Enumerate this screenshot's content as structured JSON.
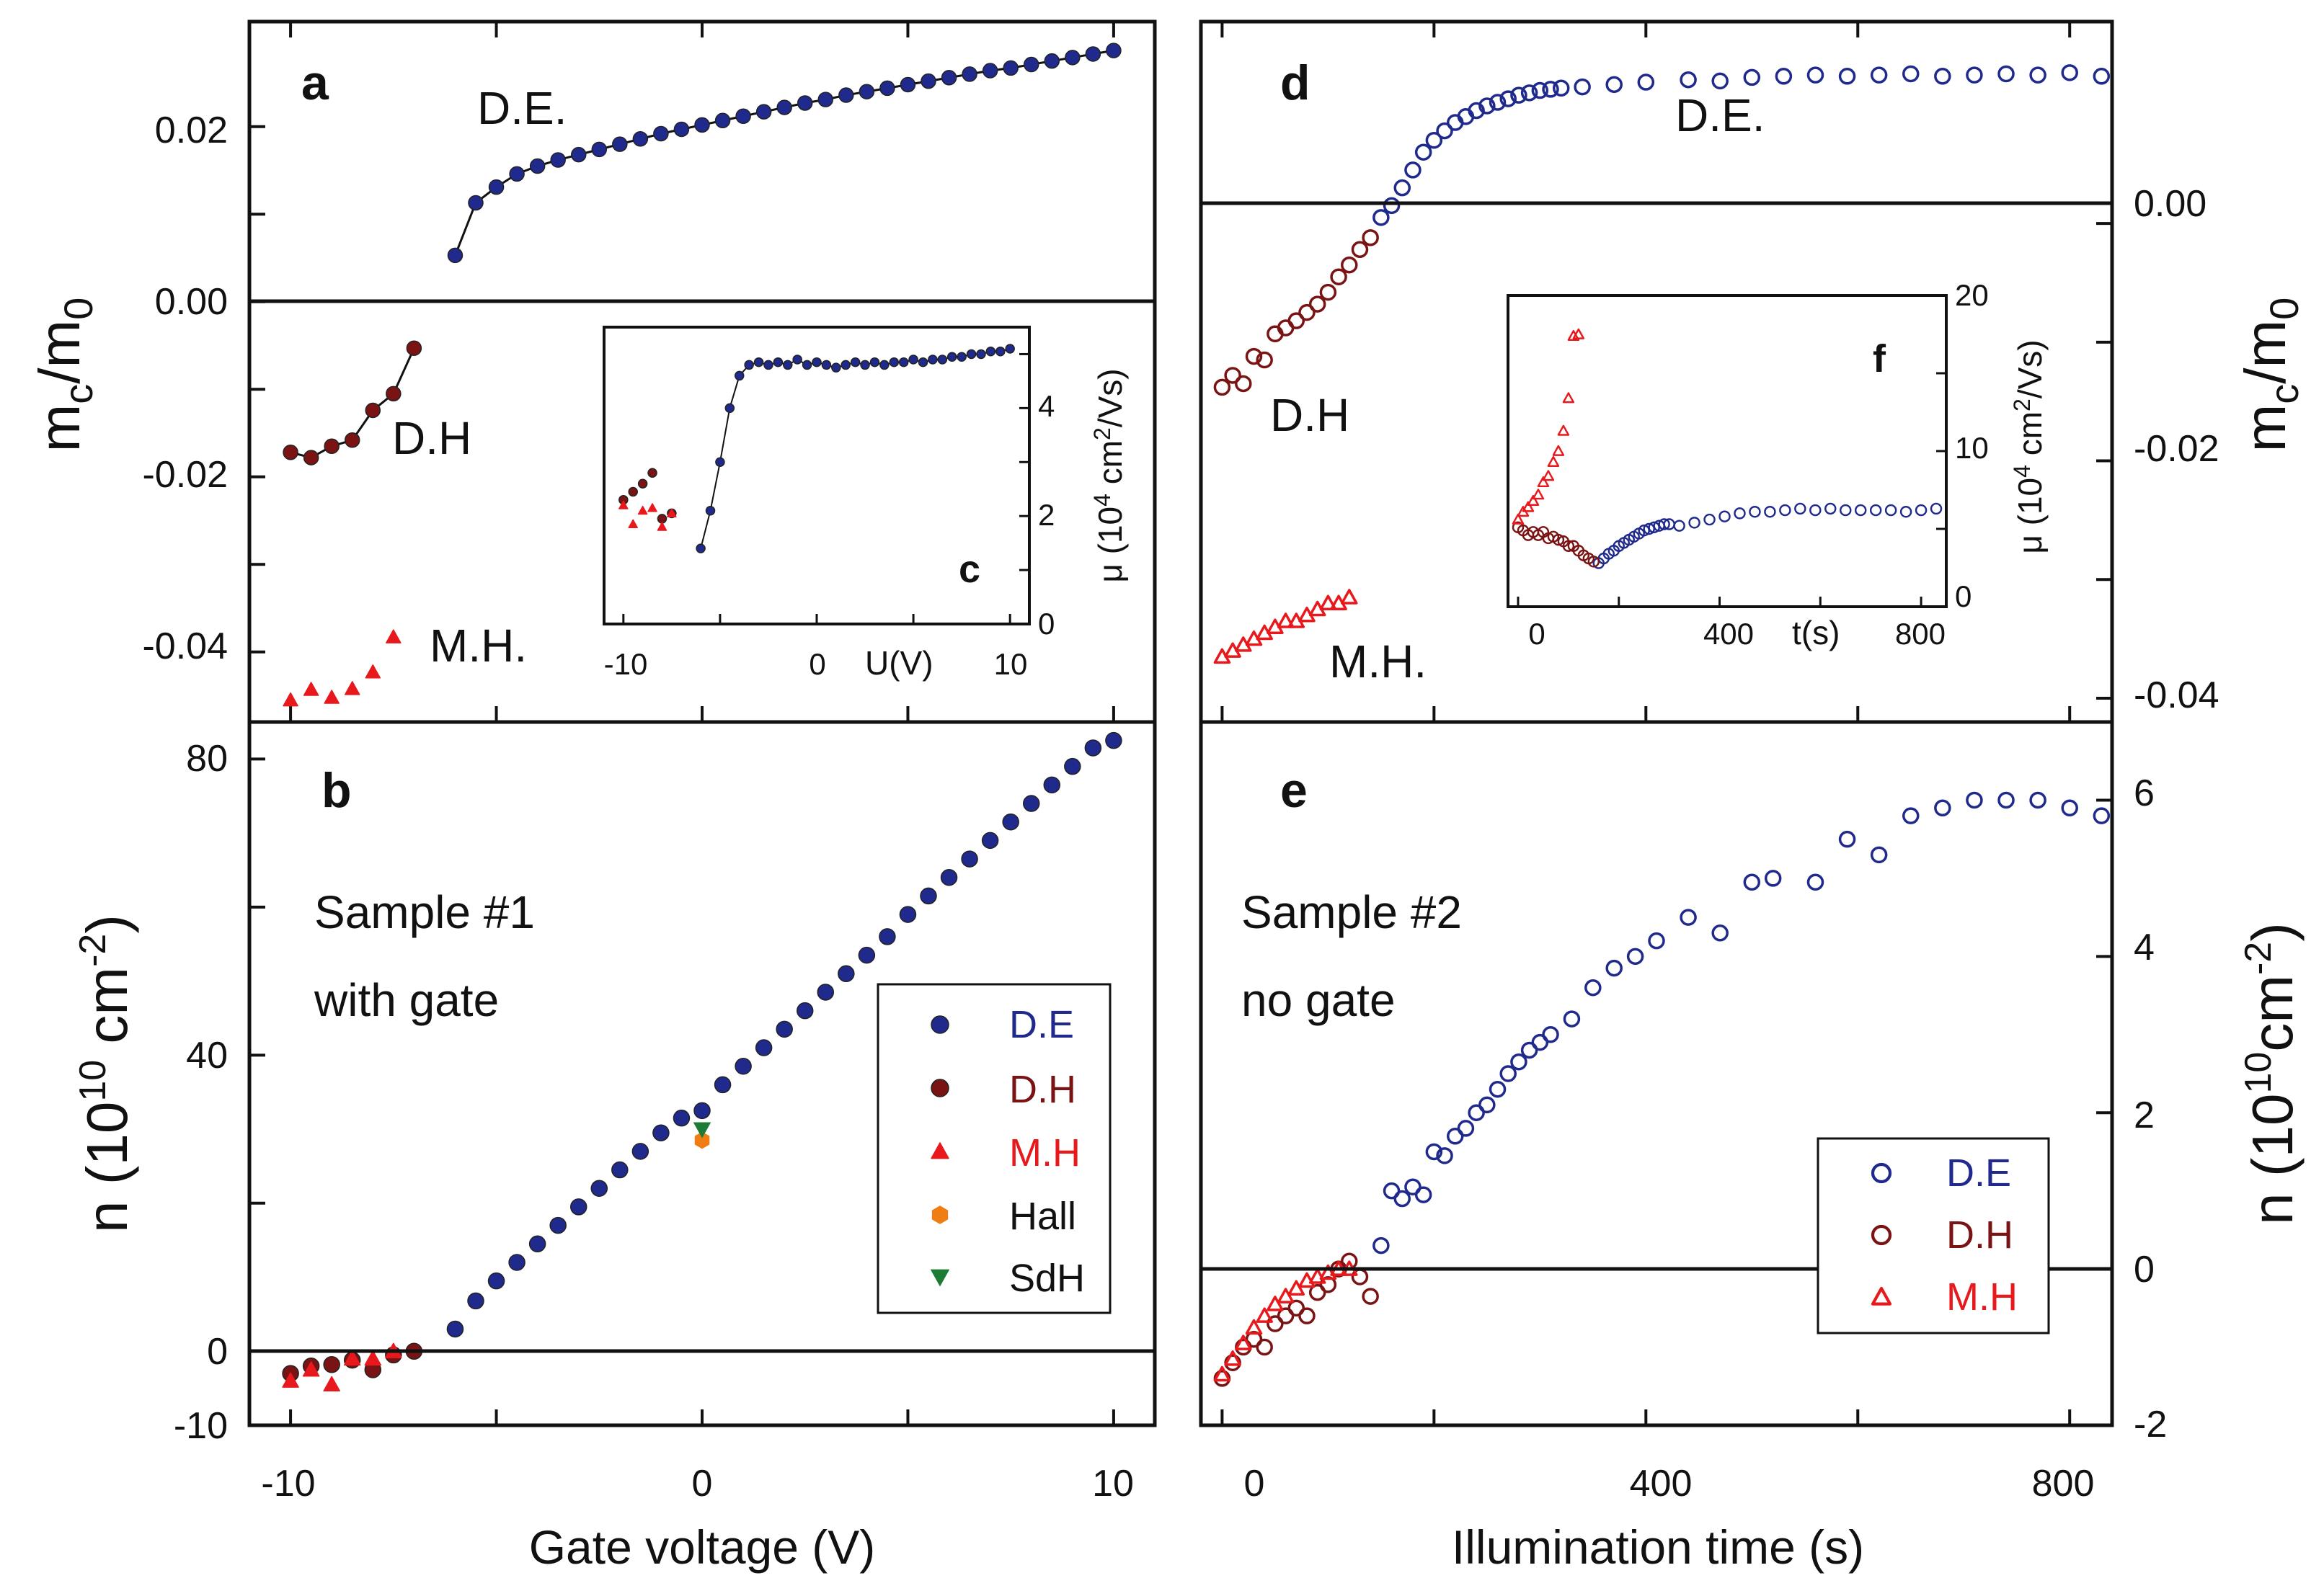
{
  "colors": {
    "de": "#1f2a8c",
    "dh": "#7a1414",
    "mh": "#e8191c",
    "hall": "#f07d14",
    "sdh": "#1e7b34",
    "axis": "#111111"
  },
  "chart_data": [
    {
      "id": "a",
      "type": "line",
      "panel_label": "a",
      "ylabel": "m_c/m_0",
      "xlim": [
        -11,
        11
      ],
      "ylim": [
        -0.048,
        0.032
      ],
      "y_ticks": [
        "0.02",
        "0.00",
        "-0.02",
        "-0.04"
      ],
      "annotations": {
        "de": "D.E.",
        "dh": "D.H",
        "mh": "M.H."
      },
      "series": [
        {
          "name": "D.E.",
          "marker": "filled-circle",
          "x": [
            -6,
            -5.5,
            -5,
            -4.5,
            -4,
            -3.5,
            -3,
            -2.5,
            -2,
            -1.5,
            -1,
            -0.5,
            0,
            0.5,
            1,
            1.5,
            2,
            2.5,
            3,
            3.5,
            4,
            4.5,
            5,
            5.5,
            6,
            6.5,
            7,
            7.5,
            8,
            8.5,
            9,
            9.5,
            10
          ],
          "y": [
            0.0053,
            0.0113,
            0.0131,
            0.0146,
            0.0155,
            0.0162,
            0.0168,
            0.0174,
            0.018,
            0.0186,
            0.0192,
            0.0197,
            0.0202,
            0.0207,
            0.0212,
            0.0217,
            0.0222,
            0.0227,
            0.0231,
            0.0236,
            0.024,
            0.0244,
            0.0248,
            0.0252,
            0.0256,
            0.026,
            0.0264,
            0.0267,
            0.0271,
            0.0275,
            0.0279,
            0.0283,
            0.0287
          ]
        },
        {
          "name": "D.H",
          "marker": "filled-circle",
          "x": [
            -10,
            -9.5,
            -9,
            -8.5,
            -8,
            -7.5,
            -7
          ],
          "y": [
            -0.0172,
            -0.0178,
            -0.0165,
            -0.0158,
            -0.0124,
            -0.0105,
            -0.0053
          ]
        },
        {
          "name": "M.H.",
          "marker": "filled-triangle",
          "x": [
            -10,
            -9.5,
            -9,
            -8.5,
            -8,
            -7.5
          ],
          "y": [
            -0.0455,
            -0.0443,
            -0.0452,
            -0.0442,
            -0.0423,
            -0.0383
          ]
        }
      ]
    },
    {
      "id": "b",
      "type": "scatter",
      "panel_label": "b",
      "xlabel": "Gate voltage (V)",
      "ylabel": "n (10^10 cm^-2)",
      "ylabel_parts": {
        "a": "n (10",
        "b": "10",
        "c": " cm",
        "d": "-2",
        "e": ")"
      },
      "xlim": [
        -11,
        11
      ],
      "ylim": [
        -10,
        85
      ],
      "x_ticks": [
        "-10",
        "0",
        "10"
      ],
      "y_ticks": [
        "80",
        "40",
        "0",
        "-10"
      ],
      "notes": [
        "Sample #1",
        "with gate"
      ],
      "legend": [
        "D.E",
        "D.H",
        "M.H",
        "Hall",
        "SdH"
      ],
      "series": [
        {
          "name": "D.E",
          "marker": "filled-circle",
          "x": [
            -6,
            -5.5,
            -5,
            -4.5,
            -4,
            -3.5,
            -3,
            -2.5,
            -2,
            -1.5,
            -1,
            -0.5,
            0,
            0.5,
            1,
            1.5,
            2,
            2.5,
            3,
            3.5,
            4,
            4.5,
            5,
            5.5,
            6,
            6.5,
            7,
            7.5,
            8,
            8.5,
            9,
            9.5,
            10
          ],
          "y": [
            3,
            6.8,
            9.5,
            12,
            14.5,
            17,
            19.5,
            22,
            24.5,
            27,
            29.5,
            31.5,
            32.5,
            36,
            38.5,
            41,
            43.5,
            46,
            48.5,
            51,
            53.5,
            56,
            59,
            61.5,
            64,
            66.5,
            69,
            71.5,
            74,
            76.5,
            79,
            81.5,
            82.5
          ]
        },
        {
          "name": "D.H",
          "marker": "filled-circle",
          "x": [
            -10,
            -9.5,
            -9,
            -8.5,
            -8,
            -7.5,
            -7
          ],
          "y": [
            -3,
            -2,
            -1.8,
            -1.2,
            -2.5,
            -0.5,
            0
          ]
        },
        {
          "name": "M.H",
          "marker": "filled-triangle",
          "x": [
            -10,
            -9.5,
            -9,
            -8.5,
            -8,
            -7.5
          ],
          "y": [
            -4,
            -2.5,
            -4.5,
            -1,
            -1,
            0
          ]
        },
        {
          "name": "Hall",
          "marker": "filled-hexagon",
          "x": [
            0
          ],
          "y": [
            28.5
          ]
        },
        {
          "name": "SdH",
          "marker": "filled-down-triangle",
          "x": [
            0
          ],
          "y": [
            30
          ]
        }
      ]
    },
    {
      "id": "c",
      "type": "line",
      "panel_label": "c",
      "inset": true,
      "xlabel": "U(V)",
      "ylabel": "μ (10^4 cm^2/Vs)",
      "ylabel_parts": {
        "a": "μ (10",
        "b": "4",
        "c": " cm",
        "d": "2",
        "e": "/Vs)"
      },
      "xlim": [
        -11,
        11
      ],
      "ylim": [
        0,
        5.5
      ],
      "x_ticks": [
        "-10",
        "0",
        "10"
      ],
      "y_ticks": [
        "0",
        "2",
        "4"
      ],
      "series": [
        {
          "name": "D.E",
          "x": [
            -6,
            -5.5,
            -5,
            -4.5,
            -4,
            -3.5,
            -3,
            -2.5,
            -2,
            -1.5,
            -1,
            -0.5,
            0,
            0.5,
            1,
            1.5,
            2,
            2.5,
            3,
            3.5,
            4,
            4.5,
            5,
            5.5,
            6,
            6.5,
            7,
            7.5,
            8,
            8.5,
            9,
            9.5,
            10
          ],
          "y": [
            1.4,
            2.1,
            3,
            4,
            4.6,
            4.8,
            4.85,
            4.8,
            4.85,
            4.8,
            4.9,
            4.8,
            4.85,
            4.8,
            4.75,
            4.8,
            4.85,
            4.8,
            4.85,
            4.8,
            4.85,
            4.85,
            4.9,
            4.85,
            4.9,
            4.9,
            4.95,
            4.95,
            5,
            5,
            5.05,
            5.05,
            5.1
          ]
        },
        {
          "name": "D.H",
          "x": [
            -10,
            -9.5,
            -9,
            -8.5,
            -8,
            -7.5
          ],
          "y": [
            2.3,
            2.45,
            2.6,
            2.8,
            1.95,
            2.05
          ]
        },
        {
          "name": "M.H",
          "x": [
            -10,
            -9.5,
            -9,
            -8.5,
            -8,
            -7.5
          ],
          "y": [
            2.2,
            1.85,
            2.1,
            2.15,
            1.8,
            2.05
          ]
        }
      ]
    },
    {
      "id": "d",
      "type": "scatter",
      "panel_label": "d",
      "ylabel": "m_c/m_0",
      "xlim": [
        -20,
        840
      ],
      "ylim": [
        -0.042,
        0.017
      ],
      "y_ticks": [
        "0.00",
        "-0.02",
        "-0.04"
      ],
      "annotations": {
        "de": "D.E.",
        "dh": "D.H",
        "mh": "M.H."
      },
      "series": [
        {
          "name": "D.E.",
          "marker": "open-circle",
          "x": [
            150,
            160,
            170,
            180,
            190,
            200,
            210,
            220,
            230,
            240,
            250,
            260,
            270,
            280,
            290,
            300,
            310,
            320,
            340,
            370,
            400,
            440,
            470,
            500,
            530,
            560,
            590,
            620,
            650,
            680,
            710,
            740,
            770,
            800,
            830
          ],
          "y": [
            0.0005,
            0.0015,
            0.003,
            0.0045,
            0.006,
            0.007,
            0.0078,
            0.0085,
            0.009,
            0.0095,
            0.0099,
            0.0102,
            0.0105,
            0.0108,
            0.011,
            0.0112,
            0.0113,
            0.0114,
            0.0115,
            0.0117,
            0.0119,
            0.0121,
            0.012,
            0.0123,
            0.0124,
            0.0125,
            0.0124,
            0.0125,
            0.0126,
            0.0124,
            0.0125,
            0.0126,
            0.0125,
            0.0127,
            0.0124
          ]
        },
        {
          "name": "D.H",
          "marker": "open-circle",
          "x": [
            0,
            10,
            20,
            30,
            40,
            50,
            60,
            70,
            80,
            90,
            100,
            110,
            120,
            130,
            140
          ],
          "y": [
            -0.0138,
            -0.0128,
            -0.0135,
            -0.0112,
            -0.0115,
            -0.0093,
            -0.0088,
            -0.0082,
            -0.0075,
            -0.0068,
            -0.0058,
            -0.0045,
            -0.0035,
            -0.0022,
            -0.0012
          ]
        },
        {
          "name": "M.H.",
          "marker": "open-triangle",
          "x": [
            0,
            10,
            20,
            30,
            40,
            50,
            60,
            70,
            80,
            90,
            100,
            110,
            120
          ],
          "y": [
            -0.0365,
            -0.036,
            -0.0355,
            -0.035,
            -0.0345,
            -0.034,
            -0.0335,
            -0.0335,
            -0.033,
            -0.0325,
            -0.032,
            -0.032,
            -0.0315
          ]
        }
      ]
    },
    {
      "id": "e",
      "type": "scatter",
      "panel_label": "e",
      "xlabel": "Illumination time (s)",
      "ylabel": "n (10^10 cm^-2)",
      "ylabel_parts": {
        "a": "n (10",
        "b": "10",
        "c": "cm",
        "d": "-2",
        "e": ")"
      },
      "xlim": [
        -20,
        840
      ],
      "ylim": [
        -2,
        7
      ],
      "x_ticks": [
        "0",
        "400",
        "800"
      ],
      "y_ticks": [
        "6",
        "4",
        "2",
        "0",
        "-2"
      ],
      "notes": [
        "Sample #2",
        "no gate"
      ],
      "legend": [
        "D.E",
        "D.H",
        "M.H"
      ],
      "series": [
        {
          "name": "D.E",
          "marker": "open-circle",
          "x": [
            150,
            160,
            170,
            180,
            190,
            200,
            210,
            220,
            230,
            240,
            250,
            260,
            270,
            280,
            290,
            300,
            310,
            330,
            350,
            370,
            390,
            410,
            440,
            470,
            500,
            520,
            560,
            590,
            620,
            650,
            680,
            710,
            740,
            770,
            800,
            830
          ],
          "y": [
            0.3,
            1,
            0.9,
            1.05,
            0.95,
            1.5,
            1.45,
            1.7,
            1.8,
            2,
            2.1,
            2.3,
            2.5,
            2.65,
            2.8,
            2.9,
            3,
            3.2,
            3.6,
            3.85,
            4,
            4.2,
            4.5,
            4.3,
            4.95,
            5,
            4.95,
            5.5,
            5.3,
            5.8,
            5.9,
            6,
            6,
            6,
            5.9,
            5.8
          ]
        },
        {
          "name": "D.H",
          "marker": "open-circle",
          "x": [
            0,
            10,
            20,
            30,
            40,
            50,
            60,
            70,
            80,
            90,
            100,
            110,
            120,
            130,
            140
          ],
          "y": [
            -1.4,
            -1.2,
            -1,
            -0.9,
            -1,
            -0.7,
            -0.6,
            -0.5,
            -0.6,
            -0.3,
            -0.2,
            0,
            0.1,
            -0.1,
            -0.35
          ]
        },
        {
          "name": "M.H",
          "marker": "open-triangle",
          "x": [
            0,
            10,
            20,
            30,
            40,
            50,
            60,
            70,
            80,
            90,
            100,
            110,
            120
          ],
          "y": [
            -1.35,
            -1.15,
            -0.95,
            -0.75,
            -0.6,
            -0.45,
            -0.35,
            -0.25,
            -0.15,
            -0.1,
            -0.05,
            0,
            0
          ]
        }
      ]
    },
    {
      "id": "f",
      "type": "scatter",
      "panel_label": "f",
      "inset": true,
      "xlabel": "t(s)",
      "ylabel": "μ (10^4 cm^2/Vs)",
      "ylabel_parts": {
        "a": "μ (10",
        "b": "4",
        "c": " cm",
        "d": "2",
        "e": "/Vs)"
      },
      "xlim": [
        -20,
        850
      ],
      "ylim": [
        0,
        20
      ],
      "x_ticks": [
        "0",
        "400",
        "800"
      ],
      "y_ticks": [
        "0",
        "10",
        "20"
      ],
      "series": [
        {
          "name": "D.E",
          "marker": "open-circle",
          "x": [
            160,
            170,
            180,
            190,
            200,
            210,
            220,
            230,
            240,
            250,
            260,
            270,
            280,
            290,
            300,
            320,
            350,
            380,
            410,
            440,
            470,
            500,
            530,
            560,
            590,
            620,
            650,
            680,
            710,
            740,
            770,
            800,
            830
          ],
          "y": [
            2.8,
            3.1,
            3.4,
            3.6,
            3.9,
            4.1,
            4.3,
            4.5,
            4.7,
            4.9,
            5,
            5.1,
            5.2,
            5.3,
            5.3,
            5.2,
            5.4,
            5.6,
            5.8,
            6,
            6.1,
            6.1,
            6.2,
            6.3,
            6.2,
            6.3,
            6.2,
            6.2,
            6.2,
            6.2,
            6.1,
            6.2,
            6.3
          ]
        },
        {
          "name": "D.H",
          "marker": "open-circle",
          "x": [
            0,
            10,
            20,
            30,
            40,
            50,
            60,
            70,
            80,
            90,
            100,
            110,
            120,
            130,
            140,
            150
          ],
          "y": [
            5.1,
            4.9,
            4.6,
            4.8,
            4.6,
            4.8,
            4.4,
            4.5,
            4.3,
            4.2,
            3.9,
            3.9,
            3.6,
            3.3,
            3.1,
            2.9
          ]
        },
        {
          "name": "M.H",
          "marker": "open-triangle",
          "x": [
            0,
            10,
            20,
            30,
            40,
            50,
            60,
            70,
            80,
            90,
            100,
            110,
            120
          ],
          "y": [
            5.6,
            6.1,
            6.4,
            6.8,
            7.2,
            8,
            8.4,
            9.3,
            10,
            11.3,
            13.4,
            17.4,
            17.5
          ]
        }
      ]
    }
  ]
}
